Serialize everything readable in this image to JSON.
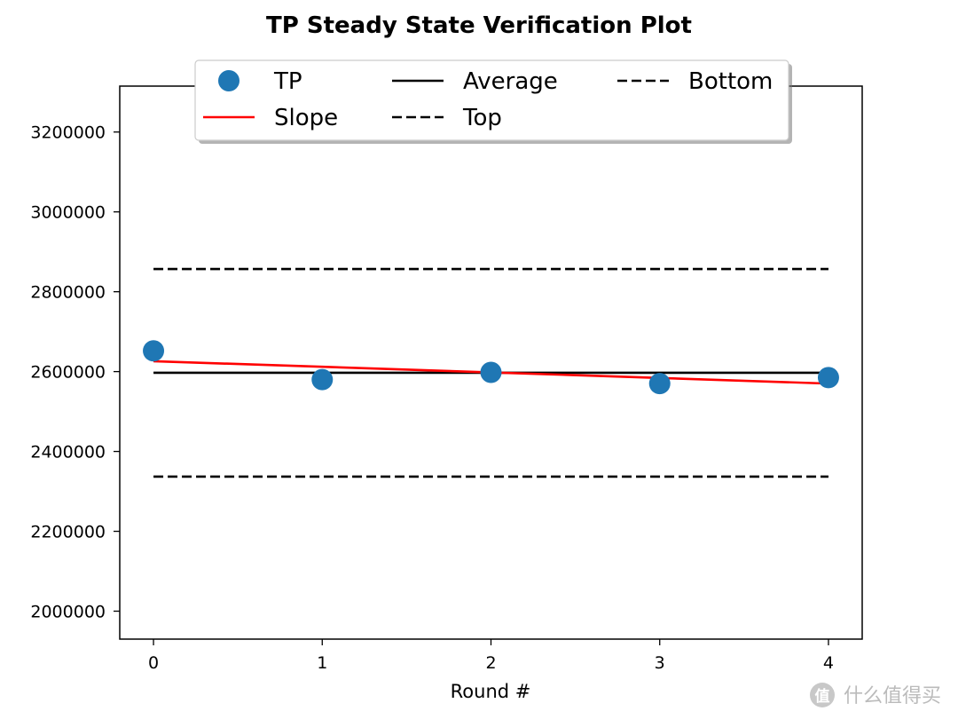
{
  "chart_data": {
    "type": "line",
    "title": "TP Steady State Verification Plot",
    "xlabel": "Round #",
    "ylabel": "",
    "x": [
      0,
      1,
      2,
      3,
      4
    ],
    "xlim": [
      -0.2,
      4.2
    ],
    "ylim": [
      1930000,
      3315000
    ],
    "x_ticks": [
      "0",
      "1",
      "2",
      "3",
      "4"
    ],
    "y_ticks": [
      "2000000",
      "2200000",
      "2400000",
      "2600000",
      "2800000",
      "3000000",
      "3200000"
    ],
    "grid": false,
    "legend_position": "top-center",
    "series": [
      {
        "name": "TP",
        "kind": "scatter",
        "color": "#1f77b4",
        "values": [
          2652000,
          2580000,
          2598000,
          2570000,
          2585000
        ]
      },
      {
        "name": "Slope",
        "kind": "line",
        "color": "#ff0000",
        "values": [
          2626000,
          2612000,
          2598000,
          2584000,
          2570000
        ]
      },
      {
        "name": "Average",
        "kind": "line",
        "color": "#000000",
        "values": [
          2597000,
          2597000,
          2597000,
          2597000,
          2597000
        ]
      },
      {
        "name": "Top",
        "kind": "dashed",
        "color": "#000000",
        "values": [
          2857000,
          2857000,
          2857000,
          2857000,
          2857000
        ]
      },
      {
        "name": "Bottom",
        "kind": "dashed",
        "color": "#000000",
        "values": [
          2337000,
          2337000,
          2337000,
          2337000,
          2337000
        ]
      }
    ]
  },
  "watermark": {
    "text": "什么值得买",
    "icon": "zhi-badge-icon"
  }
}
